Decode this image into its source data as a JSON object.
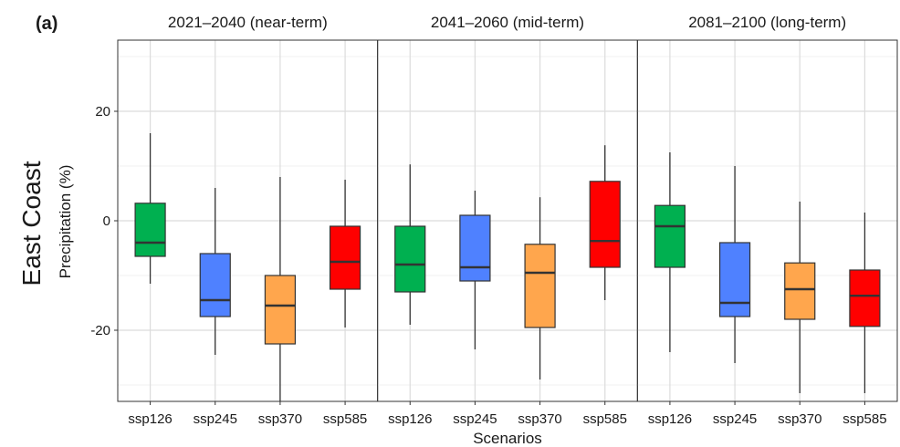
{
  "chart_data": {
    "type": "boxplot",
    "panel_label": "(a)",
    "row_label": "East Coast",
    "ylabel": "Precipitation (%)",
    "xlabel": "Scenarios",
    "ylim": [
      -33,
      33
    ],
    "yticks": [
      -20,
      0,
      20
    ],
    "ytick_labels": [
      "-20",
      "0",
      "20"
    ],
    "grid": true,
    "categories": [
      "ssp126",
      "ssp245",
      "ssp370",
      "ssp585"
    ],
    "colors": {
      "ssp126": "#00b050",
      "ssp245": "#4f81ff",
      "ssp370": "#ffa64d",
      "ssp585": "#ff0000"
    },
    "facets": [
      {
        "title": "2021–2040 (near-term)",
        "boxes": [
          {
            "scenario": "ssp126",
            "whisker_low": -11.5,
            "q1": -6.5,
            "median": -4,
            "q3": 3.2,
            "whisker_high": 16
          },
          {
            "scenario": "ssp245",
            "whisker_low": -24.5,
            "q1": -17.5,
            "median": -14.5,
            "q3": -6,
            "whisker_high": 6
          },
          {
            "scenario": "ssp370",
            "whisker_low": -33,
            "q1": -22.5,
            "median": -15.5,
            "q3": -10,
            "whisker_high": 8
          },
          {
            "scenario": "ssp585",
            "whisker_low": -19.5,
            "q1": -12.5,
            "median": -7.5,
            "q3": -1,
            "whisker_high": 7.5
          }
        ]
      },
      {
        "title": "2041–2060 (mid-term)",
        "boxes": [
          {
            "scenario": "ssp126",
            "whisker_low": -19,
            "q1": -13,
            "median": -8,
            "q3": -1,
            "whisker_high": 10.3
          },
          {
            "scenario": "ssp245",
            "whisker_low": -23.5,
            "q1": -11,
            "median": -8.5,
            "q3": 1,
            "whisker_high": 5.5
          },
          {
            "scenario": "ssp370",
            "whisker_low": -29,
            "q1": -19.5,
            "median": -9.5,
            "q3": -4.3,
            "whisker_high": 4.3
          },
          {
            "scenario": "ssp585",
            "whisker_low": -14.5,
            "q1": -8.5,
            "median": -3.7,
            "q3": 7.2,
            "whisker_high": 13.8
          }
        ]
      },
      {
        "title": "2081–2100 (long-term)",
        "boxes": [
          {
            "scenario": "ssp126",
            "whisker_low": -24,
            "q1": -8.5,
            "median": -1,
            "q3": 2.8,
            "whisker_high": 12.5
          },
          {
            "scenario": "ssp245",
            "whisker_low": -26,
            "q1": -17.5,
            "median": -15,
            "q3": -4,
            "whisker_high": 10
          },
          {
            "scenario": "ssp370",
            "whisker_low": -31.5,
            "q1": -18,
            "median": -12.5,
            "q3": -7.7,
            "whisker_high": 3.5
          },
          {
            "scenario": "ssp585",
            "whisker_low": -31.5,
            "q1": -19.3,
            "median": -13.7,
            "q3": -9,
            "whisker_high": 1.5
          }
        ]
      }
    ]
  }
}
